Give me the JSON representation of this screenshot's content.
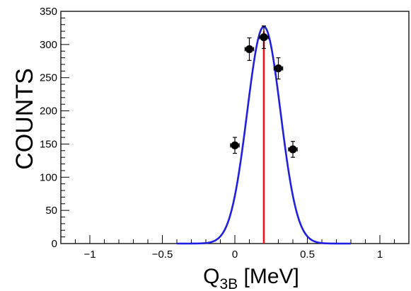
{
  "chart_data": {
    "type": "scatter",
    "xlabel_main": "Q",
    "xlabel_sub": "3B",
    "xlabel_unit": " [MeV]",
    "ylabel": "COUNTS",
    "xlim": [
      -1.2,
      1.2
    ],
    "ylim": [
      0,
      350
    ],
    "x_ticks": [
      -1,
      -0.5,
      0,
      0.5,
      1
    ],
    "x_tick_labels": [
      "−1",
      "−0.5",
      "0",
      "0.5",
      "1"
    ],
    "y_ticks": [
      0,
      50,
      100,
      150,
      200,
      250,
      300,
      350
    ],
    "y_tick_labels": [
      "0",
      "50",
      "100",
      "150",
      "200",
      "250",
      "300",
      "350"
    ],
    "grid": false,
    "series": [
      {
        "kind": "points",
        "x": [
          0.0,
          0.1,
          0.2,
          0.3,
          0.4
        ],
        "y": [
          148,
          293,
          311,
          264,
          142
        ],
        "xerr": [
          0.03,
          0.03,
          0.03,
          0.03,
          0.03
        ],
        "yerr": [
          12,
          17,
          17,
          16,
          12
        ],
        "color": "#000000"
      },
      {
        "kind": "gaussian-fit",
        "amplitude": 327,
        "mean": 0.2,
        "sigma": 0.115,
        "x_range": [
          -0.4,
          0.8
        ],
        "color": "#1f1fe0"
      },
      {
        "kind": "vertical-line",
        "x": 0.2,
        "y_range": [
          0,
          320
        ],
        "color": "#e8141a"
      }
    ]
  }
}
